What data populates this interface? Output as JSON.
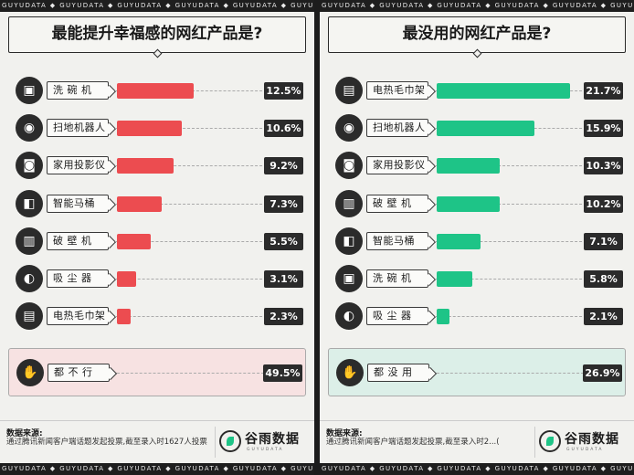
{
  "brand_strip": "GUYUDATA ◆ GUYUDATA ◆ GUYUDATA ◆ GUYUDATA ◆ GUYUDATA ◆ GUYUDATA ◆ GUYUDATA",
  "footer": {
    "source_title": "数据来源:",
    "source_text": "通过腾讯新闻客户端话题发起投票,截至录入时1627人投票",
    "source_text_right": "通过腾讯新闻客户端话题发起投票,截至录入时2...(",
    "logo_name": "谷雨数据",
    "logo_sub": "GUYUDATA"
  },
  "chart_data": [
    {
      "type": "bar",
      "title": "最能提升幸福感的网红产品是?",
      "unit": "%",
      "xlim": [
        0,
        22
      ],
      "color": "#ec4c50",
      "items": [
        {
          "label": "洗 碗 机",
          "value": 12.5,
          "display": "12.5%",
          "icon": "dishwasher-icon",
          "glyph": "▣"
        },
        {
          "label": "扫地机器人",
          "value": 10.6,
          "display": "10.6%",
          "icon": "robot-vacuum-icon",
          "glyph": "◉"
        },
        {
          "label": "家用投影仪",
          "value": 9.2,
          "display": "9.2%",
          "icon": "projector-icon",
          "glyph": "◙"
        },
        {
          "label": "智能马桶",
          "value": 7.3,
          "display": "7.3%",
          "icon": "smart-toilet-icon",
          "glyph": "◧"
        },
        {
          "label": "破 壁 机",
          "value": 5.5,
          "display": "5.5%",
          "icon": "blender-icon",
          "glyph": "▥"
        },
        {
          "label": "吸 尘 器",
          "value": 3.1,
          "display": "3.1%",
          "icon": "vacuum-cleaner-icon",
          "glyph": "◐"
        },
        {
          "label": "电热毛巾架",
          "value": 2.3,
          "display": "2.3%",
          "icon": "towel-rack-icon",
          "glyph": "▤"
        }
      ],
      "summary": {
        "label": "都 不 行",
        "value": 49.5,
        "display": "49.5%",
        "icon": "thumbs-down-icon",
        "glyph": "✋"
      }
    },
    {
      "type": "bar",
      "title": "最没用的网红产品是?",
      "unit": "%",
      "xlim": [
        0,
        22
      ],
      "color": "#1ec487",
      "items": [
        {
          "label": "电热毛巾架",
          "value": 21.7,
          "display": "21.7%",
          "icon": "towel-rack-icon",
          "glyph": "▤"
        },
        {
          "label": "扫地机器人",
          "value": 15.9,
          "display": "15.9%",
          "icon": "robot-vacuum-icon",
          "glyph": "◉"
        },
        {
          "label": "家用投影仪",
          "value": 10.3,
          "display": "10.3%",
          "icon": "projector-icon",
          "glyph": "◙"
        },
        {
          "label": "破 壁 机",
          "value": 10.2,
          "display": "10.2%",
          "icon": "blender-icon",
          "glyph": "▥"
        },
        {
          "label": "智能马桶",
          "value": 7.1,
          "display": "7.1%",
          "icon": "smart-toilet-icon",
          "glyph": "◧"
        },
        {
          "label": "洗 碗 机",
          "value": 5.8,
          "display": "5.8%",
          "icon": "dishwasher-icon",
          "glyph": "▣"
        },
        {
          "label": "吸 尘 器",
          "value": 2.1,
          "display": "2.1%",
          "icon": "vacuum-cleaner-icon",
          "glyph": "◐"
        }
      ],
      "summary": {
        "label": "都 没 用",
        "value": 26.9,
        "display": "26.9%",
        "icon": "thumbs-down-icon",
        "glyph": "✋"
      }
    }
  ]
}
